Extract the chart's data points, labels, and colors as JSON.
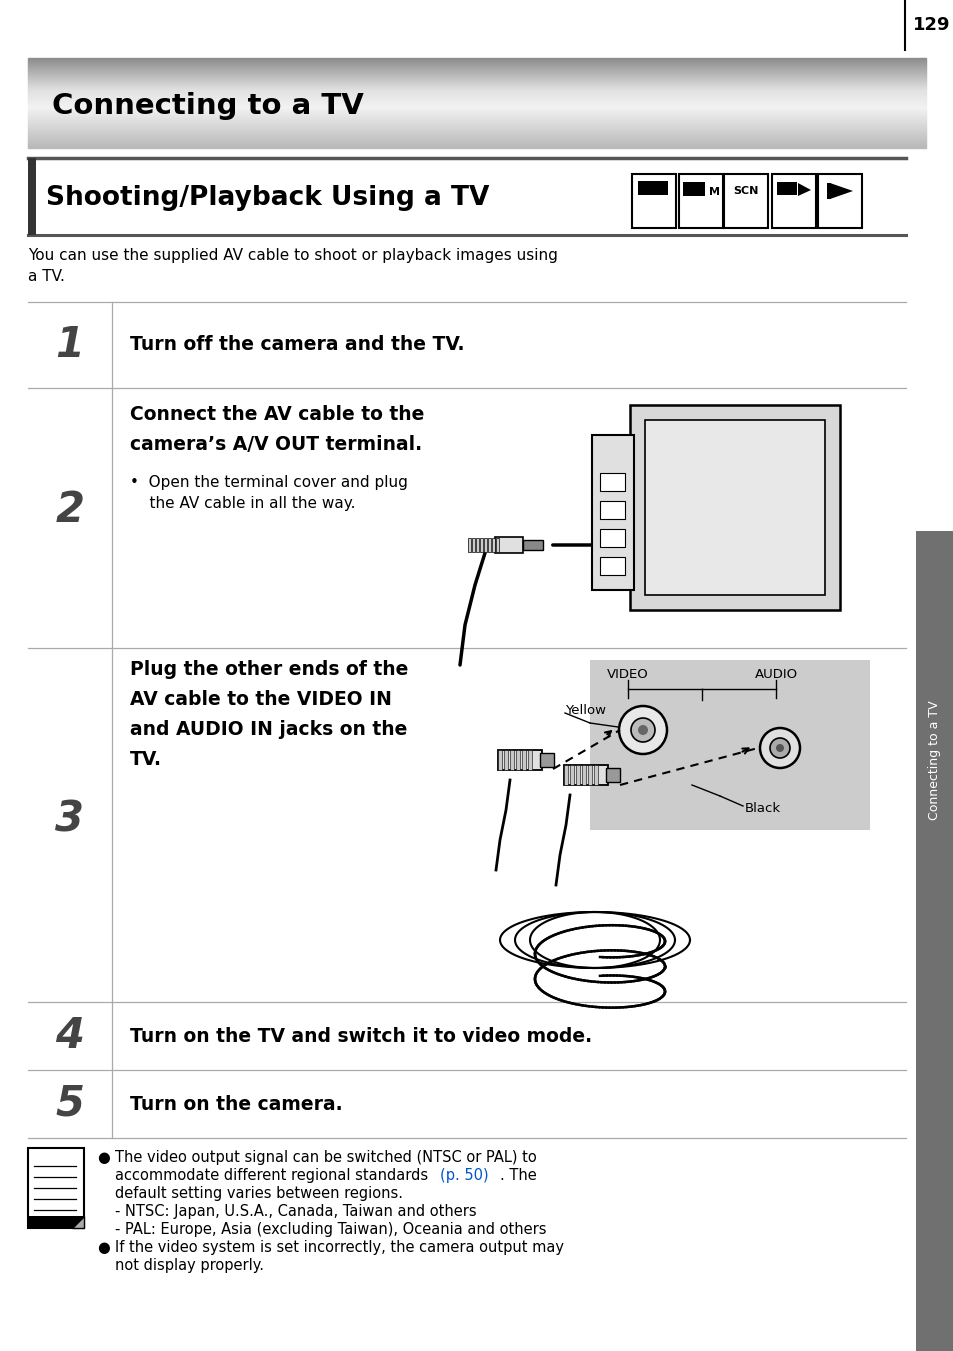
{
  "page_number": "129",
  "main_title": "Connecting to a TV",
  "section_title": "Shooting/Playback Using a TV",
  "intro_text": "You can use the supplied AV cable to shoot or playback images using\na TV.",
  "step1_text": "Turn off the camera and the TV.",
  "step2_bold1": "Connect the AV cable to the",
  "step2_bold2": "camera’s A/V OUT terminal.",
  "step2_sub": "•  Open the terminal cover and plug\n    the AV cable in all the way.",
  "step3_bold1": "Plug the other ends of the",
  "step3_bold2": "AV cable to the VIDEO IN",
  "step3_bold3": "and AUDIO IN jacks on the",
  "step3_bold4": "TV.",
  "step4_text": "Turn on the TV and switch it to video mode.",
  "step5_text": "Turn on the camera.",
  "video_label": "VIDEO",
  "audio_label": "AUDIO",
  "yellow_label": "Yellow",
  "black_label": "Black",
  "note1a": "The video output signal can be switched (NTSC or PAL) to",
  "note1b": "accommodate different regional standards ",
  "note1_link": "(p. 50)",
  "note1c": ". The",
  "note1d": "default setting varies between regions.",
  "note2": "- NTSC: Japan, U.S.A., Canada, Taiwan and others",
  "note3": "- PAL: Europe, Asia (excluding Taiwan), Oceania and others",
  "note4a": "If the video system is set incorrectly, the camera output may",
  "note4b": "not display properly.",
  "sidebar_text": "Connecting to a TV",
  "link_color": "#0055cc",
  "sidebar_color": "#707070",
  "bg_color": "#ffffff"
}
